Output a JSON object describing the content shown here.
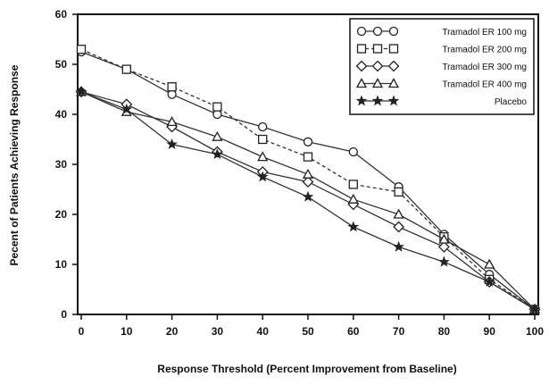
{
  "chart_data": {
    "type": "line",
    "title": "",
    "xlabel": "Response Threshold (Percent Improvement from Baseline)",
    "ylabel": "Pecent of Patients Achieving Response",
    "xlim": [
      0,
      100
    ],
    "ylim": [
      0,
      60
    ],
    "x_ticks": [
      0,
      10,
      20,
      30,
      40,
      50,
      60,
      70,
      80,
      90,
      100
    ],
    "y_ticks": [
      0,
      10,
      20,
      30,
      40,
      50,
      60
    ],
    "x": [
      0,
      10,
      20,
      30,
      40,
      50,
      60,
      70,
      80,
      90,
      100
    ],
    "grid": false,
    "legend_position": "top-right",
    "series": [
      {
        "name": "Tramadol ER 100 mg",
        "marker": "circle",
        "dash": "solid",
        "values": [
          52.5,
          49,
          44,
          40,
          37.5,
          34.5,
          32.5,
          25.5,
          16,
          8,
          1
        ]
      },
      {
        "name": "Tramadol ER 200 mg",
        "marker": "square",
        "dash": "dashed",
        "values": [
          53,
          49,
          45.5,
          41.5,
          35,
          31.5,
          26,
          24.5,
          15.5,
          7,
          1
        ]
      },
      {
        "name": "Tramadol ER 300 mg",
        "marker": "diamond",
        "dash": "solid",
        "values": [
          44.5,
          42,
          37.5,
          32.5,
          28.5,
          26.5,
          22,
          17.5,
          13.5,
          6.5,
          1
        ]
      },
      {
        "name": "Tramadol ER 400 mg",
        "marker": "triangle",
        "dash": "solid",
        "values": [
          44.5,
          40.5,
          38.5,
          35.5,
          31.5,
          28,
          23,
          20,
          15,
          10,
          1
        ]
      },
      {
        "name": "Placebo",
        "marker": "star",
        "dash": "solid",
        "values": [
          44.5,
          41,
          34,
          32,
          27.5,
          23.5,
          17.5,
          13.5,
          10.5,
          6.5,
          1
        ]
      }
    ]
  }
}
